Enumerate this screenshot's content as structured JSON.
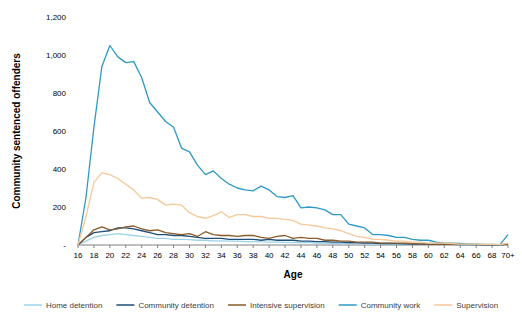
{
  "chart_data": {
    "type": "line",
    "x_label": "Age",
    "y_label": "Community sentenced offenders",
    "categories": [
      "16",
      null,
      "18",
      null,
      "20",
      null,
      "22",
      null,
      "24",
      null,
      "26",
      null,
      "28",
      null,
      "30",
      null,
      "32",
      null,
      "34",
      null,
      "36",
      null,
      "38",
      null,
      "40",
      null,
      "42",
      null,
      "44",
      null,
      "46",
      null,
      "48",
      null,
      "50",
      null,
      "52",
      null,
      "54",
      null,
      "56",
      null,
      "58",
      null,
      "60",
      null,
      "62",
      null,
      "64",
      null,
      "66",
      null,
      "68",
      null,
      "70+"
    ],
    "series": [
      {
        "name": "Home detention",
        "color": "#9dd3e8",
        "values": [
          0,
          20,
          40,
          50,
          55,
          60,
          55,
          50,
          45,
          40,
          35,
          35,
          30,
          30,
          28,
          25,
          25,
          22,
          22,
          20,
          20,
          18,
          18,
          16,
          15,
          15,
          14,
          13,
          12,
          12,
          10,
          10,
          9,
          8,
          8,
          7,
          6,
          5,
          5,
          4,
          4,
          3,
          3,
          3,
          2,
          2,
          2,
          2,
          1,
          1,
          1,
          1,
          1,
          1,
          5
        ]
      },
      {
        "name": "Community detention",
        "color": "#1f4e79",
        "values": [
          0,
          40,
          65,
          70,
          75,
          90,
          90,
          85,
          75,
          65,
          55,
          55,
          50,
          50,
          45,
          40,
          35,
          35,
          35,
          30,
          30,
          30,
          30,
          25,
          30,
          25,
          25,
          25,
          20,
          20,
          18,
          18,
          15,
          15,
          12,
          12,
          10,
          10,
          8,
          8,
          7,
          6,
          5,
          5,
          4,
          4,
          3,
          3,
          2,
          2,
          2,
          1,
          1,
          1,
          5
        ]
      },
      {
        "name": "Intensive supervision",
        "color": "#8a5a2b",
        "values": [
          0,
          40,
          80,
          95,
          80,
          85,
          95,
          100,
          85,
          75,
          80,
          65,
          60,
          55,
          60,
          45,
          70,
          55,
          50,
          50,
          45,
          50,
          50,
          40,
          35,
          45,
          50,
          35,
          40,
          35,
          35,
          25,
          25,
          20,
          20,
          15,
          15,
          15,
          10,
          10,
          10,
          10,
          8,
          5,
          5,
          4,
          4,
          3,
          3,
          3,
          2,
          2,
          2,
          2,
          3
        ]
      },
      {
        "name": "Community work",
        "color": "#2e9ac4",
        "values": [
          0,
          250,
          620,
          940,
          1050,
          990,
          960,
          965,
          880,
          750,
          700,
          650,
          620,
          510,
          490,
          420,
          370,
          390,
          350,
          320,
          300,
          290,
          285,
          310,
          290,
          255,
          250,
          260,
          195,
          200,
          195,
          185,
          160,
          160,
          110,
          100,
          90,
          55,
          55,
          50,
          40,
          40,
          30,
          25,
          25,
          15,
          10,
          10,
          8,
          5,
          5,
          3,
          3,
          2,
          55
        ]
      },
      {
        "name": "Supervision",
        "color": "#f6c89a",
        "values": [
          0,
          150,
          330,
          380,
          370,
          350,
          320,
          290,
          245,
          250,
          240,
          210,
          215,
          210,
          170,
          150,
          140,
          155,
          175,
          145,
          160,
          160,
          150,
          150,
          140,
          140,
          135,
          130,
          110,
          105,
          100,
          90,
          85,
          75,
          60,
          45,
          40,
          30,
          30,
          25,
          20,
          20,
          15,
          15,
          10,
          10,
          10,
          8,
          5,
          5,
          5,
          3,
          3,
          2,
          10
        ]
      }
    ],
    "ylim": [
      0,
      1200
    ],
    "yticks": [
      {
        "value": 0,
        "label": "-"
      },
      200,
      400,
      600,
      800,
      {
        "value": 1000,
        "label": "1,000"
      },
      {
        "value": 1200,
        "label": "1,200"
      }
    ],
    "grid": false,
    "legend": "bottom"
  }
}
